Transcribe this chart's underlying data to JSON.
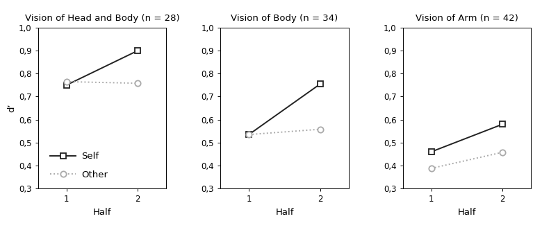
{
  "subplots": [
    {
      "title": "Vision of Head and Body (n = 28)",
      "self": [
        0.75,
        0.9
      ],
      "other": [
        0.765,
        0.758
      ],
      "show_legend": true,
      "show_ylabel": true
    },
    {
      "title": "Vision of Body (n = 34)",
      "self": [
        0.535,
        0.755
      ],
      "other": [
        0.535,
        0.558
      ],
      "show_legend": false,
      "show_ylabel": false
    },
    {
      "title": "Vision of Arm (n = 42)",
      "self": [
        0.46,
        0.58
      ],
      "other": [
        0.388,
        0.458
      ],
      "show_legend": false,
      "show_ylabel": false
    }
  ],
  "x": [
    1,
    2
  ],
  "xlim": [
    0.6,
    2.4
  ],
  "ylim": [
    0.3,
    1.0
  ],
  "yticks": [
    0.3,
    0.4,
    0.5,
    0.6,
    0.7,
    0.8,
    0.9,
    1.0
  ],
  "xticks": [
    1,
    2
  ],
  "xlabel": "Half",
  "ylabel": "d’",
  "self_color": "#222222",
  "other_color": "#aaaaaa",
  "self_linestyle": "-",
  "other_linestyle": ":",
  "self_marker": "s",
  "other_marker": "o",
  "self_label": "Self",
  "other_label": "Other",
  "linewidth": 1.4,
  "markersize": 6,
  "title_fontsize": 9.5,
  "label_fontsize": 9.5,
  "tick_fontsize": 8.5,
  "legend_fontsize": 9.5
}
